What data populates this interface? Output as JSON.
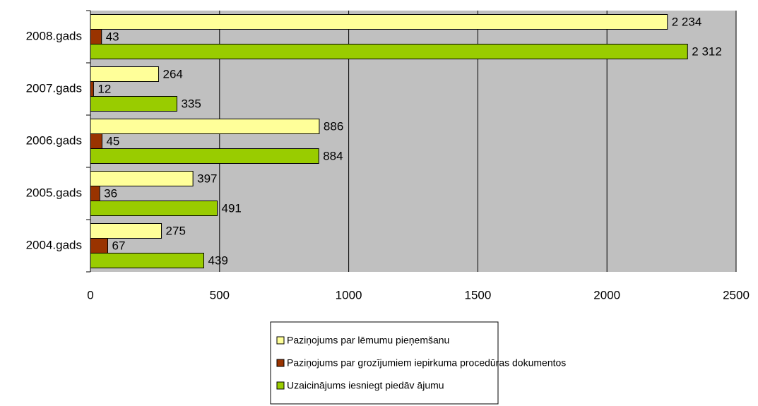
{
  "chart_data": {
    "type": "bar",
    "orientation": "horizontal",
    "categories": [
      "2004.gads",
      "2005.gads",
      "2006.gads",
      "2007.gads",
      "2008.gads"
    ],
    "series": [
      {
        "name": "Paziņojums par lēmumu pieņemšanu",
        "color": "#ffff99",
        "values": [
          275,
          397,
          886,
          264,
          2234
        ],
        "value_labels": [
          "275",
          "397",
          "886",
          "264",
          "2 234"
        ]
      },
      {
        "name": "Paziņojums par grozījumiem iepirkuma procedūras dokumentos",
        "color": "#993300",
        "values": [
          67,
          36,
          45,
          12,
          43
        ],
        "value_labels": [
          "67",
          "36",
          "45",
          "12",
          "43"
        ]
      },
      {
        "name": "Uzaicinājums iesniegt piedāv ājumu",
        "color": "#99cc00",
        "values": [
          439,
          491,
          884,
          335,
          2312
        ],
        "value_labels": [
          "439",
          "491",
          "884",
          "335",
          "2 312"
        ]
      }
    ],
    "xlim": [
      0,
      2500
    ],
    "xticks": [
      0,
      500,
      1000,
      1500,
      2000,
      2500
    ],
    "grid": true,
    "legend": "bottom"
  }
}
